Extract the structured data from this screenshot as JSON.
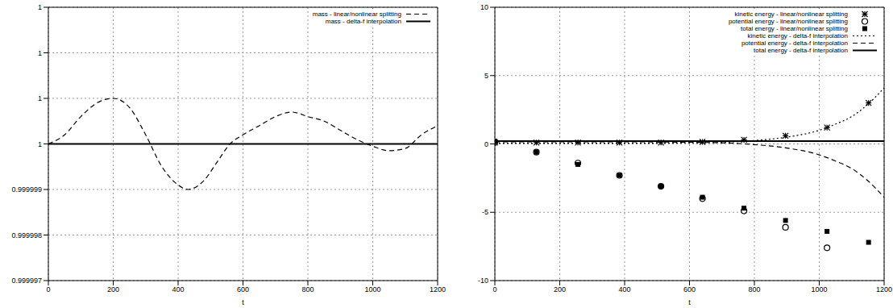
{
  "chart_data": [
    {
      "type": "line",
      "xlabel": "t",
      "xlim": [
        0,
        1200
      ],
      "xticks": [
        0,
        200,
        400,
        600,
        800,
        1000,
        1200
      ],
      "ylim": [
        0.999997,
        1.000003
      ],
      "yticks": [
        {
          "value": 0.999997,
          "label": "0.999997"
        },
        {
          "value": 0.999998,
          "label": "0.999998"
        },
        {
          "value": 0.999999,
          "label": "0.999999"
        },
        1,
        {
          "value": 1.000001,
          "label": "1"
        },
        {
          "value": 1.000002,
          "label": "1"
        },
        {
          "value": 1.000003,
          "label": "1"
        }
      ],
      "grid": true,
      "legend": "top right",
      "series": [
        {
          "name": "mass - linear/nonlinear splitting",
          "type": "line",
          "line_style": "dashed",
          "color": "#000000",
          "x": [
            0,
            50,
            100,
            150,
            200,
            250,
            300,
            350,
            400,
            430,
            480,
            520,
            560,
            600,
            650,
            700,
            750,
            800,
            850,
            900,
            950,
            1000,
            1050,
            1100,
            1150,
            1200
          ],
          "values": [
            1,
            1.0000002,
            1.0000006,
            1.0000009,
            1.000001,
            1.0000008,
            1.0000002,
            0.9999995,
            0.9999991,
            0.999999,
            0.9999992,
            0.9999996,
            1,
            1.0000002,
            1.0000004,
            1.0000006,
            1.0000007,
            1.0000006,
            1.0000005,
            1.0000003,
            1.0000001,
            0.99999995,
            0.99999985,
            0.9999999,
            1.0000002,
            1.0000004
          ]
        },
        {
          "name": "mass - delta-f interpolation",
          "type": "line",
          "line_style": "solid",
          "color": "#000000",
          "x": [
            0,
            1200
          ],
          "values": [
            1,
            1
          ]
        }
      ]
    },
    {
      "type": "line",
      "xlabel": "t",
      "xlim": [
        0,
        1200
      ],
      "xticks": [
        0,
        200,
        400,
        600,
        800,
        1000,
        1200
      ],
      "ylim": [
        -10,
        10
      ],
      "yticks": [
        -10,
        -5,
        0,
        5,
        10
      ],
      "grid": true,
      "legend": "top right",
      "series": [
        {
          "name": "kinetic energy - linear/nonlinear splitting",
          "type": "scatter",
          "marker": "asterisk",
          "color": "#000000",
          "x": [
            0,
            128,
            256,
            384,
            512,
            640,
            768,
            896,
            1024,
            1152
          ],
          "values": [
            0.1,
            0.1,
            0.1,
            0.1,
            0.1,
            0.15,
            0.3,
            0.6,
            1.2,
            3.0
          ]
        },
        {
          "name": "potential energy - linear/nonlinear splitting",
          "type": "scatter",
          "marker": "circle",
          "color": "#000000",
          "x": [
            0,
            128,
            256,
            384,
            512,
            640,
            768,
            896,
            1024,
            1152
          ],
          "values": [
            0.1,
            -0.6,
            -1.4,
            -2.3,
            -3.1,
            -4.0,
            -4.9,
            -6.1,
            -7.6,
            null
          ]
        },
        {
          "name": "total energy - linear/nonlinear splitting",
          "type": "scatter",
          "marker": "square",
          "color": "#000000",
          "x": [
            0,
            128,
            256,
            384,
            512,
            640,
            768,
            896,
            1024,
            1152
          ],
          "values": [
            0.2,
            -0.6,
            -1.5,
            -2.3,
            -3.1,
            -3.9,
            -4.7,
            -5.6,
            -6.4,
            -7.2
          ]
        },
        {
          "name": "kinetic energy - delta-f interpolation",
          "type": "line",
          "line_style": "dotted",
          "color": "#000000",
          "x": [
            0,
            200,
            400,
            600,
            700,
            800,
            900,
            1000,
            1050,
            1100,
            1150,
            1200
          ],
          "values": [
            0.05,
            0.05,
            0.05,
            0.08,
            0.12,
            0.25,
            0.5,
            1.0,
            1.45,
            2.0,
            2.9,
            4.1
          ]
        },
        {
          "name": "potential energy - delta-f interpolation",
          "type": "line",
          "line_style": "dashed",
          "color": "#000000",
          "x": [
            0,
            200,
            400,
            600,
            700,
            800,
            900,
            1000,
            1050,
            1100,
            1150,
            1200
          ],
          "values": [
            0.15,
            0.15,
            0.15,
            0.12,
            0.08,
            -0.05,
            -0.3,
            -0.8,
            -1.25,
            -1.8,
            -2.7,
            -3.9
          ]
        },
        {
          "name": "total energy - delta-f interpolation",
          "type": "line",
          "line_style": "solid",
          "color": "#000000",
          "x": [
            0,
            1200
          ],
          "values": [
            0.2,
            0.2
          ]
        }
      ]
    }
  ]
}
